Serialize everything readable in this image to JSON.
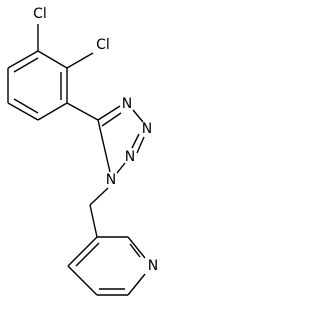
{
  "atoms": [
    {
      "label": "Cl"
    },
    {
      "label": "Cl"
    },
    {
      "label": "N"
    },
    {
      "label": "N"
    },
    {
      "label": "N"
    },
    {
      "label": "N"
    },
    {
      "label": "N"
    }
  ]
}
